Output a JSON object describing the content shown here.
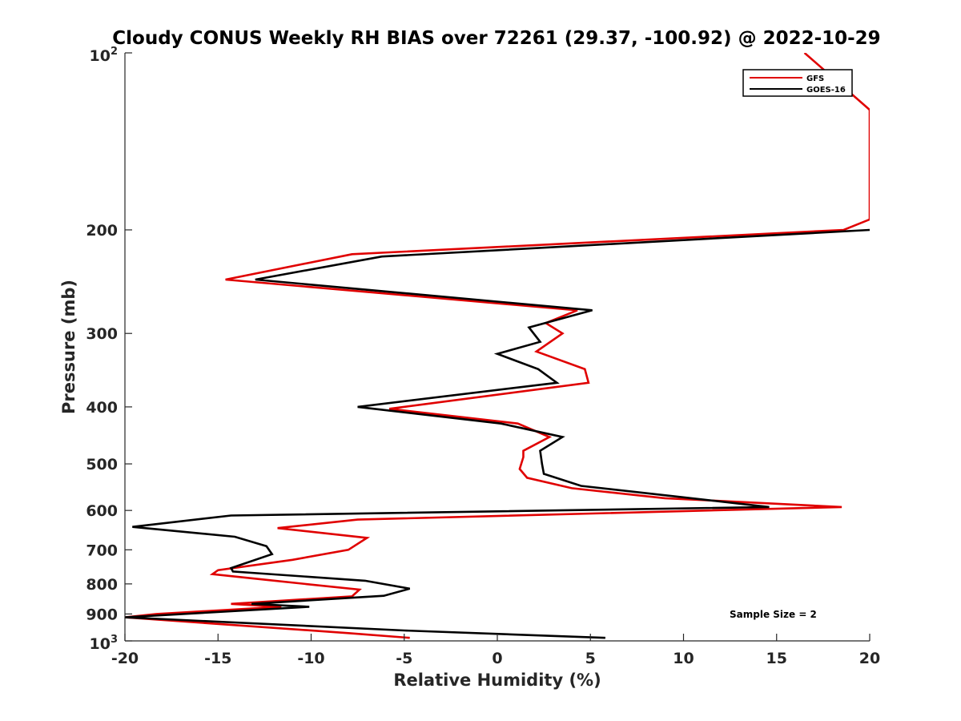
{
  "chart_data": {
    "type": "line",
    "title": "Cloudy CONUS Weekly RH BIAS over 72261 (29.37, -100.92) @ 2022-10-29",
    "xlabel": "Relative Humidity (%)",
    "ylabel": "Pressure (mb)",
    "xlim": [
      -20,
      20
    ],
    "ylim": [
      100,
      1000
    ],
    "y_scale": "log",
    "y_reversed": true,
    "x_ticks": [
      "-20",
      "-15",
      "-10",
      "-5",
      "0",
      "5",
      "10",
      "15",
      "20"
    ],
    "y_ticks": [
      {
        "value": 100,
        "base": "10",
        "exp": "2"
      },
      {
        "value": 200,
        "label": "200"
      },
      {
        "value": 300,
        "label": "300"
      },
      {
        "value": 400,
        "label": "400"
      },
      {
        "value": 500,
        "label": "500"
      },
      {
        "value": 600,
        "label": "600"
      },
      {
        "value": 700,
        "label": "700"
      },
      {
        "value": 800,
        "label": "800"
      },
      {
        "value": 900,
        "label": "900"
      },
      {
        "value": 1000,
        "base": "10",
        "exp": "3"
      }
    ],
    "legend_position": "top-right",
    "grid": false,
    "annotation": "Sample Size = 2",
    "series": [
      {
        "name": "GFS",
        "color": "#e00000",
        "points": [
          [
            16.5,
            100
          ],
          [
            20,
            125
          ],
          [
            20,
            192
          ],
          [
            18.6,
            200
          ],
          [
            -7.8,
            220
          ],
          [
            -14.6,
            243
          ],
          [
            4.3,
            274
          ],
          [
            2.6,
            288
          ],
          [
            3.5,
            300
          ],
          [
            2.1,
            322
          ],
          [
            4.7,
            345
          ],
          [
            4.9,
            364
          ],
          [
            -5.8,
            403
          ],
          [
            1.1,
            427
          ],
          [
            2.8,
            450
          ],
          [
            1.4,
            475
          ],
          [
            1.4,
            487
          ],
          [
            1.2,
            510
          ],
          [
            1.6,
            528
          ],
          [
            4,
            550
          ],
          [
            9,
            572
          ],
          [
            18.5,
            592
          ],
          [
            -7.5,
            622
          ],
          [
            -11.8,
            643
          ],
          [
            -7.0,
            668
          ],
          [
            -8.0,
            700
          ],
          [
            -11.0,
            728
          ],
          [
            -15.0,
            758
          ],
          [
            -15.3,
            770
          ],
          [
            -12.5,
            787
          ],
          [
            -7.4,
            818
          ],
          [
            -7.8,
            840
          ],
          [
            -14.3,
            865
          ],
          [
            -11.6,
            875
          ],
          [
            -18.3,
            900
          ],
          [
            -20,
            912
          ],
          [
            -8,
            970
          ],
          [
            -4.7,
            988
          ]
        ]
      },
      {
        "name": "GOES-16",
        "color": "#000000",
        "points": [
          [
            20,
            200
          ],
          [
            -6.2,
            222
          ],
          [
            -13.0,
            243
          ],
          [
            5.1,
            274
          ],
          [
            1.7,
            293
          ],
          [
            2.3,
            310
          ],
          [
            0,
            325
          ],
          [
            2.2,
            345
          ],
          [
            3.2,
            364
          ],
          [
            -7.5,
            400
          ],
          [
            0.2,
            427
          ],
          [
            3.5,
            450
          ],
          [
            2.3,
            475
          ],
          [
            2.4,
            500
          ],
          [
            2.5,
            520
          ],
          [
            4.5,
            545
          ],
          [
            10,
            570
          ],
          [
            14.6,
            592
          ],
          [
            -14.3,
            612
          ],
          [
            -19.6,
            640
          ],
          [
            -14.1,
            665
          ],
          [
            -12.4,
            690
          ],
          [
            -12.1,
            712
          ],
          [
            -14.3,
            752
          ],
          [
            -14.2,
            762
          ],
          [
            -7.1,
            790
          ],
          [
            -4.7,
            815
          ],
          [
            -6.1,
            838
          ],
          [
            -13.2,
            865
          ],
          [
            -10.1,
            875
          ],
          [
            -20,
            912
          ],
          [
            -5,
            960
          ],
          [
            5.8,
            988
          ]
        ]
      }
    ]
  }
}
